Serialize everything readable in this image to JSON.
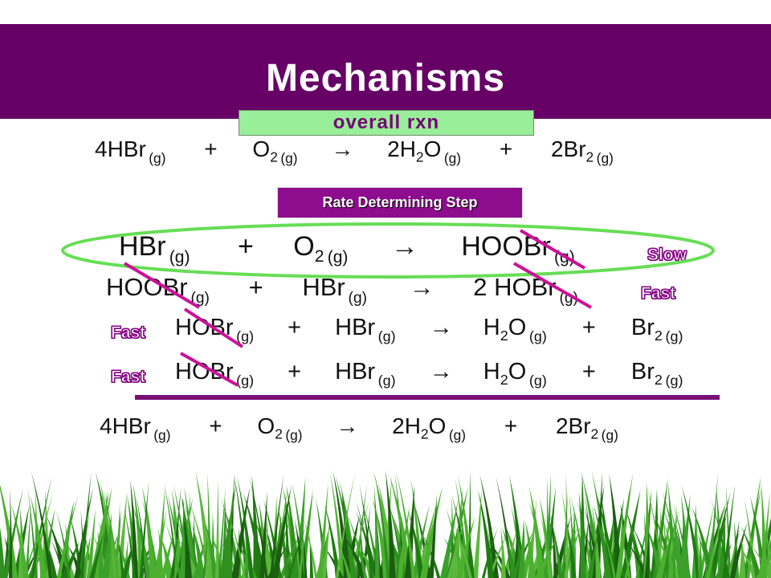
{
  "title": "Mechanisms",
  "overall_label": "overall rxn",
  "rds_label": "Rate Determining Step",
  "overall_reaction": {
    "reactant1": {
      "coef": "4 ",
      "formula": "HBr",
      "sub": "",
      "state": "(g)"
    },
    "plus1": "+",
    "reactant2": {
      "coef": "",
      "formula": "O",
      "sub": "2",
      "state": "(g)"
    },
    "arrow": "→",
    "product1": {
      "coef": "2 ",
      "formula": "H",
      "sub": "2",
      "formula2": "O",
      "state": "(g)"
    },
    "plus2": "+",
    "product2": {
      "coef": "2 ",
      "formula": "Br",
      "sub": "2",
      "state": "(g)"
    }
  },
  "steps": [
    {
      "r1": "HBr",
      "r1s": "(g)",
      "r2": "O",
      "r2sub": "2",
      "r2s": "(g)",
      "p1": "HOOBr",
      "p1s": "(g)",
      "rate": "Slow"
    },
    {
      "r1": "HOOBr",
      "r1s": "(g)",
      "r2": "HBr",
      "r2sub": "",
      "r2s": "(g)",
      "p1": "2 HOBr",
      "p1s": "(g)",
      "rate": "Fast"
    },
    {
      "r1": "HOBr",
      "r1s": "(g)",
      "r2": "HBr",
      "r2s": "(g)",
      "p1": "H",
      "p1sub": "2",
      "p1b": "O",
      "p1s": "(g)",
      "p2": "Br",
      "p2sub": "2",
      "p2s": "(g)",
      "rate": "Fast"
    },
    {
      "r1": "HOBr",
      "r1s": "(g)",
      "r2": "HBr",
      "r2s": "(g)",
      "p1": "H",
      "p1sub": "2",
      "p1b": "O",
      "p1s": "(g)",
      "p2": "Br",
      "p2sub": "2",
      "p2s": "(g)",
      "rate": "Fast"
    }
  ],
  "symbols": {
    "plus": "+",
    "arrow": "→"
  },
  "colors": {
    "title_bar": "#660066",
    "highlight_oval": "#66dd55",
    "cancel_line": "#cc1199",
    "rate_text": "#ffffff",
    "rate_outline": "#880088",
    "grass": "#2f8f1f"
  }
}
